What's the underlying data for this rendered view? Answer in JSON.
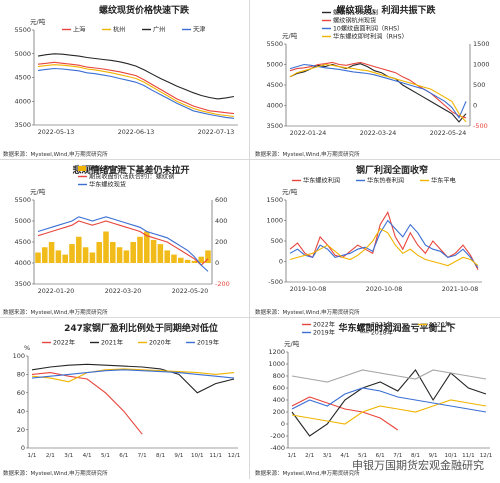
{
  "chart_data": [
    {
      "type": "line",
      "title": "螺纹现货价格快速下跌",
      "unit": "元/吨",
      "ylim": [
        3500,
        5500
      ],
      "y_ticks": [
        3500,
        4000,
        4500,
        5000,
        5500
      ],
      "x_ticks": [
        "2022-05-13",
        "2022-06-13",
        "2022-07-13"
      ],
      "source": "数据来源：Mysteel,Wind,申万期货研究所",
      "series": [
        {
          "name": "上海",
          "color": "#e8453c",
          "values": [
            4780,
            4800,
            4820,
            4800,
            4780,
            4760,
            4720,
            4700,
            4680,
            4650,
            4620,
            4580,
            4540,
            4450,
            4350,
            4250,
            4150,
            4050,
            3980,
            3900,
            3850,
            3800,
            3780,
            3760,
            3740
          ]
        },
        {
          "name": "杭州",
          "color": "#f0b400",
          "values": [
            4730,
            4750,
            4770,
            4760,
            4740,
            4720,
            4680,
            4660,
            4630,
            4600,
            4560,
            4520,
            4480,
            4400,
            4300,
            4200,
            4100,
            4000,
            3920,
            3850,
            3800,
            3760,
            3720,
            3700,
            3680
          ]
        },
        {
          "name": "广州",
          "color": "#262626",
          "values": [
            4950,
            4980,
            5000,
            4990,
            4970,
            4950,
            4920,
            4900,
            4880,
            4860,
            4830,
            4790,
            4740,
            4660,
            4570,
            4480,
            4400,
            4320,
            4250,
            4180,
            4120,
            4080,
            4050,
            4070,
            4100
          ]
        },
        {
          "name": "天津",
          "color": "#3b6fd4",
          "values": [
            4650,
            4670,
            4690,
            4680,
            4660,
            4640,
            4600,
            4580,
            4550,
            4520,
            4480,
            4440,
            4400,
            4330,
            4230,
            4140,
            4050,
            3960,
            3880,
            3800,
            3760,
            3720,
            3690,
            3660,
            3640
          ]
        }
      ]
    },
    {
      "type": "line",
      "title": "螺纹现货、利润共振下跌",
      "unit": "元/吨",
      "ylim": [
        3500,
        5500
      ],
      "y_ticks": [
        3500,
        4000,
        4500,
        5000,
        5500
      ],
      "y2lim": [
        -500,
        1500
      ],
      "y2_ticks": [
        -500,
        0,
        500,
        1000,
        1500
      ],
      "x_ticks": [
        "2022-01-24",
        "2022-03-24",
        "2022-05-24"
      ],
      "source": "数据来源：Mysteel,Wind,申万期货研究所",
      "series": [
        {
          "name": "螺纹钢10月交割",
          "color": "#262626",
          "axis": "left",
          "values": [
            4700,
            4780,
            4820,
            4900,
            4980,
            4950,
            5000,
            4950,
            4900,
            4980,
            5020,
            4950,
            4850,
            4800,
            4700,
            4650,
            4500,
            4400,
            4300,
            4200,
            4100,
            4000,
            3900,
            3800,
            3600,
            3800
          ]
        },
        {
          "name": "螺纹钢杭州现货",
          "color": "#e8453c",
          "axis": "left",
          "values": [
            4850,
            4900,
            4920,
            4950,
            5000,
            5020,
            5050,
            5000,
            4980,
            5020,
            5050,
            5000,
            4950,
            4900,
            4850,
            4800,
            4700,
            4620,
            4500,
            4400,
            4300,
            4150,
            4000,
            3850,
            3750,
            3700
          ]
        },
        {
          "name": "10螺纹盘面利润（RHS）",
          "color": "#3b6fd4",
          "axis": "right",
          "values": [
            900,
            950,
            1000,
            980,
            950,
            920,
            900,
            880,
            850,
            820,
            800,
            780,
            750,
            700,
            650,
            600,
            550,
            500,
            450,
            400,
            300,
            200,
            100,
            -50,
            -300,
            100
          ]
        },
        {
          "name": "华东螺纹即时利润（RHS）",
          "color": "#f0b400",
          "axis": "right",
          "values": [
            700,
            800,
            850,
            900,
            950,
            1000,
            980,
            950,
            920,
            900,
            870,
            850,
            800,
            750,
            700,
            650,
            600,
            550,
            500,
            450,
            400,
            300,
            200,
            100,
            -200,
            -400
          ]
        }
      ]
    },
    {
      "type": "line",
      "title": "悲观情绪宣泄下基差仍未拉开",
      "unit": "元/吨",
      "ylim": [
        3500,
        5500
      ],
      "y_ticks": [
        3500,
        4000,
        4500,
        5000,
        5500
      ],
      "y2lim": [
        -200,
        600
      ],
      "y2_ticks": [
        -200,
        0,
        200,
        400,
        600
      ],
      "x_ticks": [
        "2022-01-20",
        "2022-03-20",
        "2022-05-20"
      ],
      "source": "数据来源：Mysteel,Wind,申万期货研究所",
      "series": [
        {
          "name": "基差（RHS）",
          "color": "#f0b400",
          "axis": "right",
          "values": [
            100,
            150,
            200,
            120,
            80,
            180,
            250,
            150,
            100,
            200,
            300,
            200,
            150,
            120,
            200,
            250,
            300,
            220,
            180,
            120,
            80,
            50,
            30,
            20,
            60,
            120
          ]
        },
        {
          "name": "期货收盘价(活跃合约)：螺纹钢",
          "color": "#e8453c",
          "axis": "left",
          "values": [
            4650,
            4700,
            4750,
            4800,
            4850,
            4900,
            5000,
            4950,
            4900,
            4950,
            5000,
            4950,
            4900,
            4850,
            4800,
            4750,
            4650,
            4600,
            4550,
            4500,
            4400,
            4300,
            4200,
            4100,
            3950,
            4100
          ]
        },
        {
          "name": "华东螺纹现货",
          "color": "#3b6fd4",
          "axis": "left",
          "values": [
            4750,
            4800,
            4850,
            4900,
            4950,
            5000,
            5100,
            5050,
            5000,
            5050,
            5100,
            5050,
            5000,
            4950,
            4900,
            4850,
            4750,
            4700,
            4650,
            4600,
            4500,
            4400,
            4300,
            4150,
            3950,
            3800
          ]
        }
      ]
    },
    {
      "type": "line",
      "title": "钢厂利润全面收窄",
      "unit": "元/吨",
      "ylim": [
        -500,
        1500
      ],
      "y_ticks": [
        -500,
        0,
        500,
        1000,
        1500
      ],
      "x_ticks": [
        "2019-10-08",
        "2020-10-08",
        "2021-10-08"
      ],
      "source": "数据来源：Mysteel,Wind,申万期货研究所",
      "series": [
        {
          "name": "华东螺纹利润",
          "color": "#e8453c",
          "values": [
            300,
            450,
            200,
            100,
            600,
            400,
            150,
            100,
            250,
            400,
            300,
            200,
            900,
            1200,
            600,
            300,
            700,
            400,
            200,
            500,
            300,
            100,
            200,
            400,
            150,
            -200
          ]
        },
        {
          "name": "华东热卷利润",
          "color": "#3b6fd4",
          "values": [
            200,
            300,
            150,
            100,
            400,
            300,
            100,
            150,
            200,
            300,
            350,
            250,
            700,
            1000,
            800,
            600,
            900,
            700,
            400,
            300,
            250,
            100,
            150,
            300,
            100,
            -150
          ]
        },
        {
          "name": "华东平电",
          "color": "#f0b400",
          "values": [
            50,
            100,
            150,
            200,
            300,
            400,
            250,
            100,
            50,
            150,
            300,
            500,
            800,
            700,
            400,
            200,
            300,
            150,
            50,
            0,
            -50,
            -100,
            0,
            100,
            50,
            -100
          ]
        }
      ]
    },
    {
      "type": "line",
      "title": "247家钢厂盈利比例处于同期绝对低位",
      "unit": "%",
      "ylim": [
        0,
        100
      ],
      "y_ticks": [
        0,
        20,
        40,
        60,
        80,
        100
      ],
      "categories": [
        "1/1",
        "2/1",
        "3/1",
        "4/1",
        "5/1",
        "6/1",
        "7/1",
        "8/1",
        "9/1",
        "10/1",
        "11/1",
        "12/1"
      ],
      "source": "数据来源：Mysteel,Wind,申万期货研究所",
      "series": [
        {
          "name": "2022年",
          "color": "#e8453c",
          "values": [
            80,
            82,
            78,
            75,
            60,
            40,
            15,
            null,
            null,
            null,
            null,
            null
          ]
        },
        {
          "name": "2021年",
          "color": "#262626",
          "values": [
            85,
            88,
            90,
            91,
            90,
            89,
            88,
            86,
            80,
            60,
            70,
            75
          ]
        },
        {
          "name": "2020年",
          "color": "#f0b400",
          "values": [
            78,
            76,
            72,
            82,
            85,
            86,
            85,
            84,
            83,
            82,
            80,
            82
          ]
        },
        {
          "name": "2019年",
          "color": "#3b6fd4",
          "values": [
            76,
            78,
            80,
            82,
            84,
            85,
            84,
            83,
            82,
            80,
            78,
            76
          ]
        }
      ]
    },
    {
      "type": "line",
      "title": "华东螺即时利润盈亏平衡上下",
      "unit": "元/吨",
      "ylim": [
        -400,
        1200
      ],
      "y_ticks": [
        -400,
        -200,
        0,
        200,
        400,
        600,
        800,
        1000,
        1200
      ],
      "categories": [
        "1/1",
        "2/1",
        "3/1",
        "4/1",
        "5/1",
        "6/1",
        "7/1",
        "8/1",
        "9/1",
        "10/1",
        "11/1",
        "12/1"
      ],
      "source": "数据来源：Mysteel,Wind,申万期货研究所",
      "series": [
        {
          "name": "2022年",
          "color": "#e8453c",
          "values": [
            300,
            450,
            350,
            250,
            200,
            100,
            -100,
            null,
            null,
            null,
            null,
            null
          ]
        },
        {
          "name": "2021年",
          "color": "#262626",
          "values": [
            200,
            -200,
            0,
            400,
            600,
            700,
            550,
            900,
            400,
            850,
            600,
            500
          ]
        },
        {
          "name": "2020年",
          "color": "#f0b400",
          "values": [
            150,
            100,
            50,
            0,
            200,
            300,
            250,
            200,
            300,
            400,
            350,
            300
          ]
        },
        {
          "name": "2019年",
          "color": "#3b6fd4",
          "values": [
            250,
            400,
            300,
            500,
            600,
            550,
            450,
            400,
            350,
            300,
            250,
            200
          ]
        },
        {
          "name": "2018年",
          "color": "#a5a5a5",
          "values": [
            800,
            750,
            700,
            800,
            900,
            850,
            800,
            750,
            900,
            850,
            800,
            750
          ]
        }
      ]
    }
  ],
  "watermark": "申银万国期货宏观金融研究"
}
